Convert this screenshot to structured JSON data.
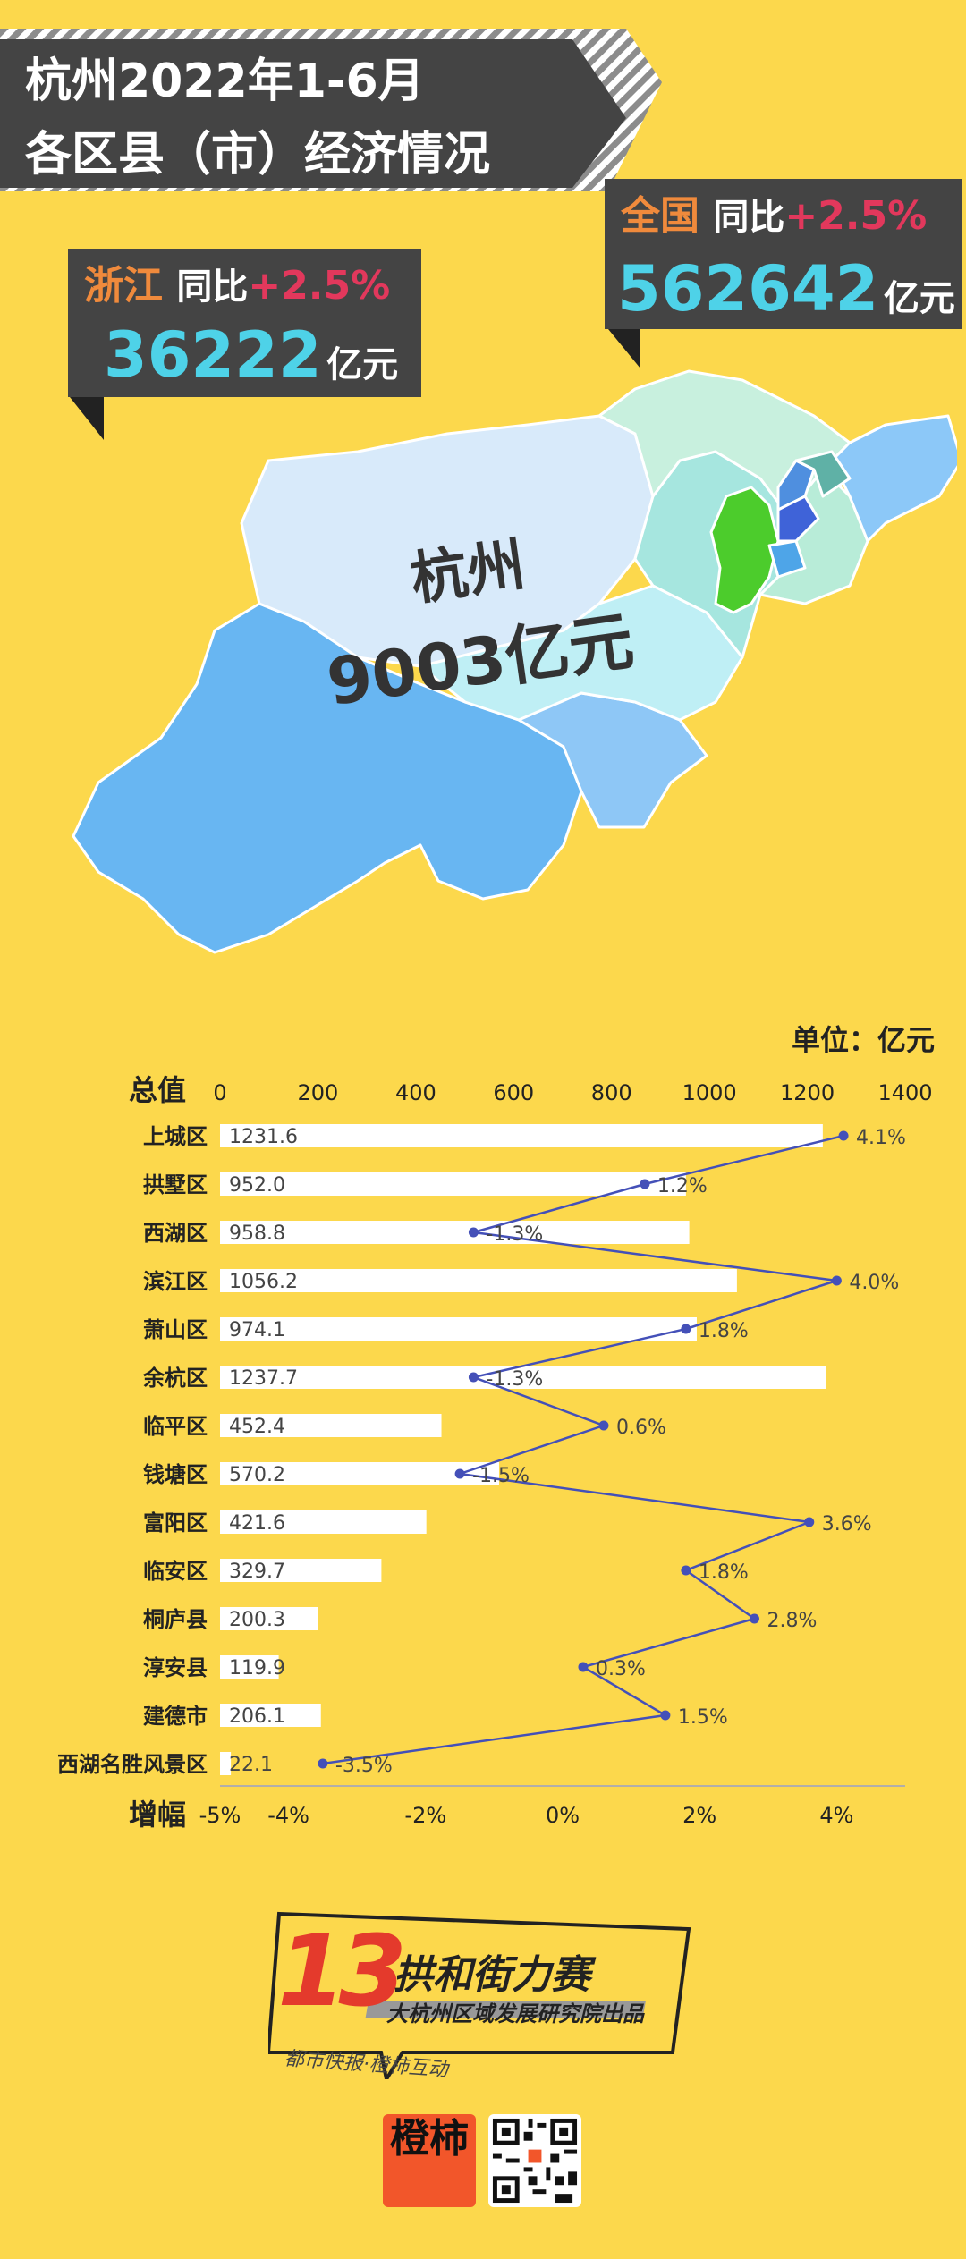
{
  "title": {
    "line1": "杭州2022年1-6月",
    "line2": "各区县（市）经济情况"
  },
  "national": {
    "label": "全国",
    "yoy_label": "同比",
    "yoy_value": "+2.5%",
    "value": "562642",
    "unit": "亿元"
  },
  "zhejiang": {
    "label": "浙江",
    "yoy_label": "同比",
    "yoy_value": "+2.5%",
    "value": "36222",
    "unit": "亿元"
  },
  "map": {
    "city": "杭州",
    "value": "9003亿元"
  },
  "colors": {
    "background": "#fcd84c",
    "banner": "#444444",
    "bar": "#ffffff",
    "line": "#4450b8"
  },
  "chart_data": {
    "type": "bar",
    "unit_label": "单位：亿元",
    "top_axis_label": "总值",
    "bottom_axis_label": "增幅",
    "categories": [
      "上城区",
      "拱墅区",
      "西湖区",
      "滨江区",
      "萧山区",
      "余杭区",
      "临平区",
      "钱塘区",
      "富阳区",
      "临安区",
      "桐庐县",
      "淳安县",
      "建德市",
      "西湖名胜风景区"
    ],
    "series": [
      {
        "values": [
          1231.6,
          952.0,
          958.8,
          1056.2,
          974.1,
          1237.7,
          452.4,
          570.2,
          421.6,
          329.7,
          200.3,
          119.9,
          206.1,
          22.1
        ],
        "value_labels": [
          "1231.6",
          "952.0",
          "958.8",
          "1056.2",
          "974.1",
          "1237.7",
          "452.4",
          "570.2",
          "421.6",
          "329.7",
          "200.3",
          "119.9",
          "206.1",
          "22.1"
        ]
      },
      {
        "type": "line",
        "values": [
          4.1,
          1.2,
          -1.3,
          4.0,
          1.8,
          -1.3,
          0.6,
          -1.5,
          3.6,
          1.8,
          2.8,
          0.3,
          1.5,
          -3.5
        ],
        "value_labels": [
          "4.1%",
          "1.2%",
          "-1.3%",
          "4.0%",
          "1.8%",
          "-1.3%",
          "0.6%",
          "-1.5%",
          "3.6%",
          "1.8%",
          "2.8%",
          "0.3%",
          "1.5%",
          "-3.5%"
        ]
      }
    ],
    "x_top": {
      "range": [
        0,
        1400
      ],
      "ticks": [
        "0",
        "200",
        "400",
        "600",
        "800",
        "1000",
        "1200",
        "1400"
      ]
    },
    "x_bottom": {
      "range": [
        -5,
        5
      ],
      "ticks": [
        "-5%",
        "-4%",
        "-2%",
        "0%",
        "2%",
        "4%"
      ],
      "tick_values": [
        -5,
        -4,
        -2,
        0,
        2,
        4
      ]
    }
  },
  "footer": {
    "logo_number": "13",
    "logo_title": "拱和街力赛",
    "logo_subtitle": "大杭州区域发展研究院出品",
    "media": "都市快报·橙柿互动",
    "brand": "橙柿"
  }
}
